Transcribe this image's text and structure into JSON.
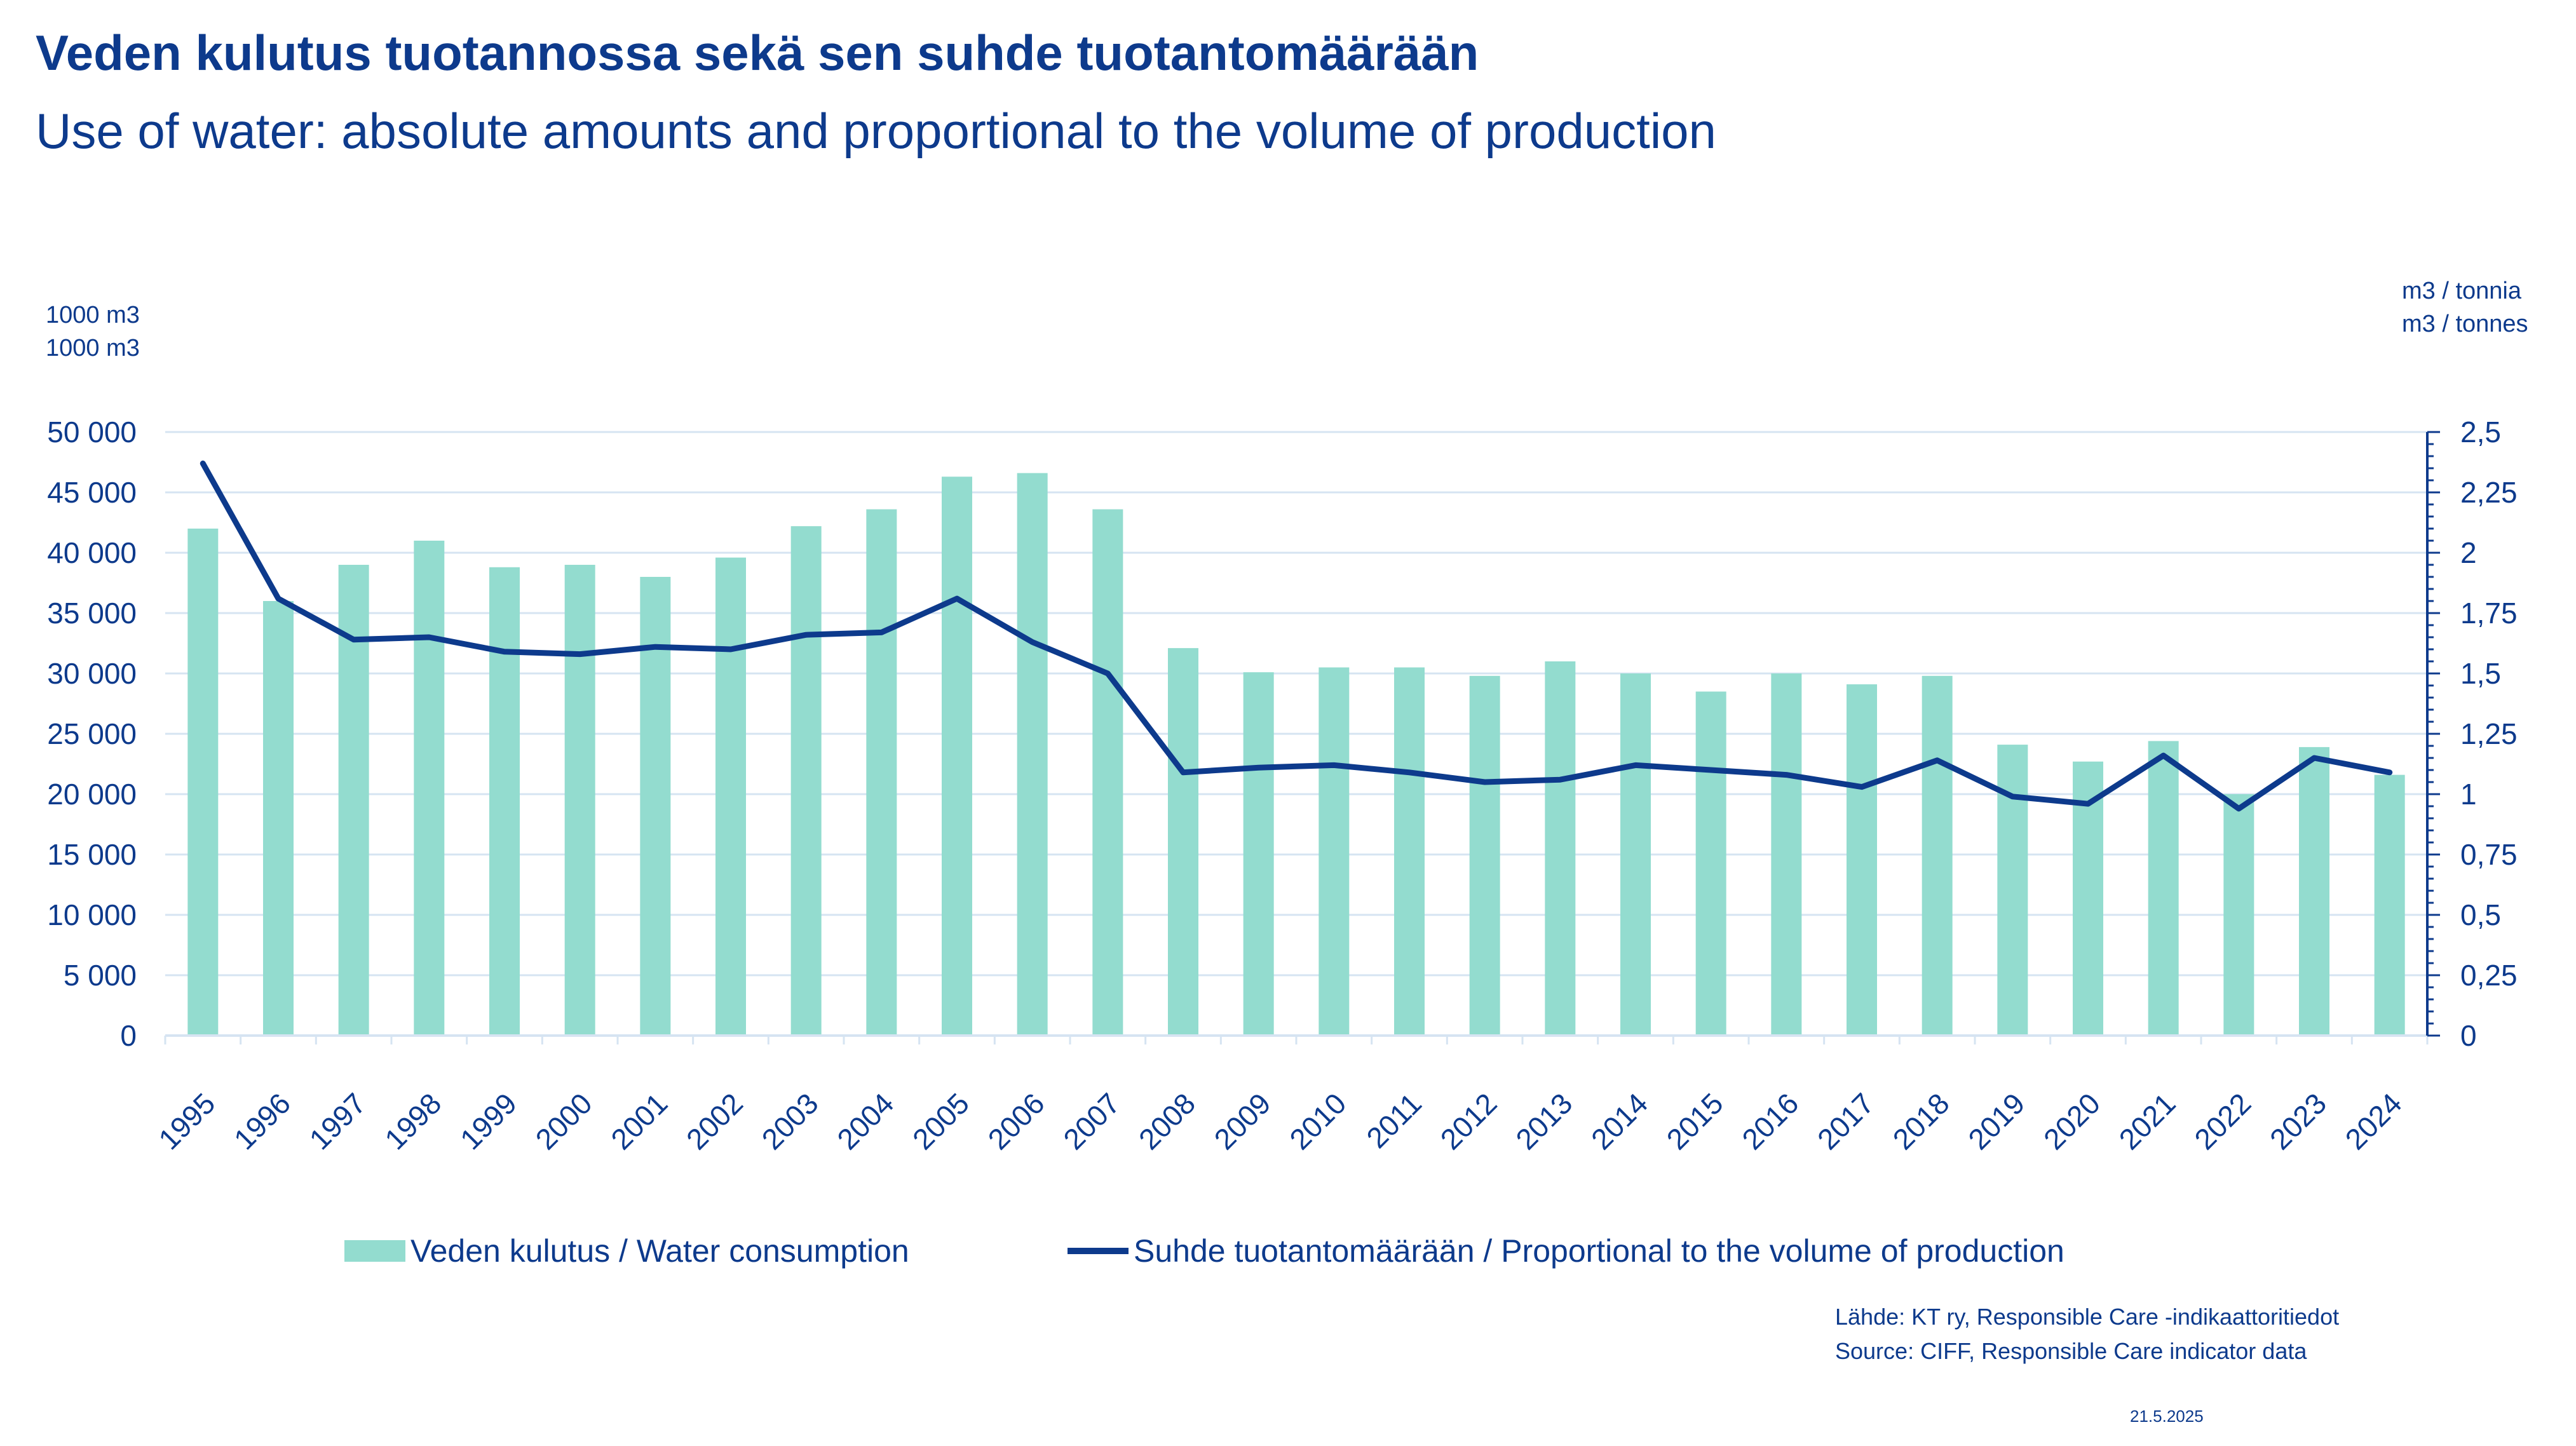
{
  "header": {
    "title": "Veden kulutus tuotannossa sekä sen suhde tuotantomäärään",
    "subtitle": "Use of water: absolute amounts and proportional to the volume of production"
  },
  "units": {
    "left_fi": "1000 m3",
    "left_en": "1000 m3",
    "right_fi": "m3 / tonnia",
    "right_en": "m3  / tonnes"
  },
  "legend": {
    "bar_label": "Veden kulutus / Water consumption",
    "line_label": "Suhde tuotantomäärään / Proportional to the volume of production"
  },
  "source": {
    "line1": "Lähde: KT ry, Responsible Care -indikaattoritiedot",
    "line2": "Source: CIFF, Responsible Care indicator data"
  },
  "date": "21.5.2025",
  "colors": {
    "bar": "#93dccf",
    "line": "#0d3a8c",
    "text": "#0d3a8c",
    "grid": "#d6e4f2"
  },
  "chart_data": {
    "type": "bar",
    "categories": [
      "1995",
      "1996",
      "1997",
      "1998",
      "1999",
      "2000",
      "2001",
      "2002",
      "2003",
      "2004",
      "2005",
      "2006",
      "2007",
      "2008",
      "2009",
      "2010",
      "2011",
      "2012",
      "2013",
      "2014",
      "2015",
      "2016",
      "2017",
      "2018",
      "2019",
      "2020",
      "2021",
      "2022",
      "2023",
      "2024"
    ],
    "series": [
      {
        "name": "Veden kulutus / Water consumption",
        "type": "bar",
        "axis": "left",
        "values": [
          42000,
          36000,
          39000,
          41000,
          38800,
          39000,
          38000,
          39600,
          42200,
          43600,
          46300,
          46600,
          43600,
          32100,
          30100,
          30500,
          30500,
          29800,
          31000,
          30000,
          28500,
          30000,
          29100,
          29800,
          24100,
          22700,
          24400,
          20000,
          23900,
          21600
        ]
      },
      {
        "name": "Suhde tuotantomäärään / Proportional to the volume of production",
        "type": "line",
        "axis": "right",
        "values": [
          2.37,
          1.81,
          1.64,
          1.65,
          1.59,
          1.58,
          1.61,
          1.6,
          1.66,
          1.67,
          1.81,
          1.63,
          1.5,
          1.09,
          1.11,
          1.12,
          1.09,
          1.05,
          1.06,
          1.12,
          1.1,
          1.08,
          1.03,
          1.14,
          0.99,
          0.96,
          1.16,
          0.94,
          1.15,
          1.09
        ]
      }
    ],
    "y_left": {
      "ylim": [
        0,
        50000
      ],
      "ticks": [
        0,
        5000,
        10000,
        15000,
        20000,
        25000,
        30000,
        35000,
        40000,
        45000,
        50000
      ],
      "tick_labels": [
        "0",
        "5 000",
        "10 000",
        "15 000",
        "20 000",
        "25 000",
        "30 000",
        "35 000",
        "40 000",
        "45 000",
        "50 000"
      ]
    },
    "y_right": {
      "ylim": [
        0,
        2.5
      ],
      "ticks": [
        0,
        0.25,
        0.5,
        0.75,
        1,
        1.25,
        1.5,
        1.75,
        2,
        2.25,
        2.5
      ],
      "tick_labels": [
        "0",
        "0,25",
        "0,5",
        "0,75",
        "1",
        "1,25",
        "1,5",
        "1,75",
        "2",
        "2,25",
        "2,5"
      ]
    },
    "grid": true,
    "legend_position": "bottom"
  }
}
